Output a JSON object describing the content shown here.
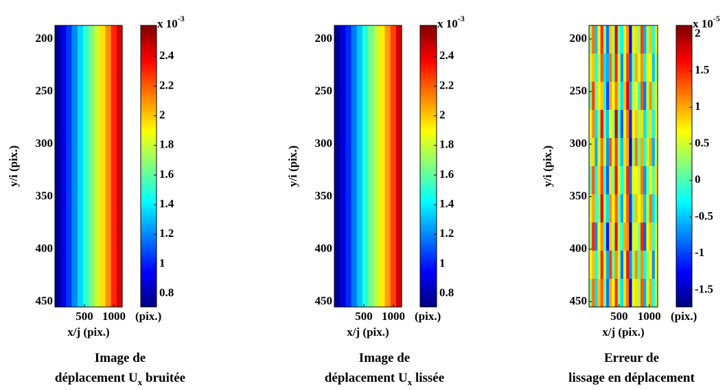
{
  "chart_data": [
    {
      "type": "heatmap",
      "colormap": "jet",
      "xlabel": "x/j (pix.)",
      "ylabel": "y/i (pix.)",
      "xlim": [
        0,
        1140
      ],
      "xticks": [
        500,
        1000
      ],
      "ylim": [
        187,
        455
      ],
      "yticks": [
        200,
        250,
        300,
        350,
        400,
        450
      ],
      "clim": [
        0.71,
        2.61
      ],
      "cticks": [
        0.8,
        1,
        1.2,
        1.4,
        1.6,
        1.8,
        2,
        2.2,
        2.4
      ],
      "cbar_multiplier": "x 10",
      "cbar_exponent": "-3",
      "cbar_unit": "(pix.)",
      "caption": {
        "line1": "Image de",
        "line2": "déplacement  U",
        "line2_sub": "x",
        "line2_end": " bruitée"
      },
      "z": [
        [
          0.75,
          0.9,
          1.05,
          1.2,
          1.35,
          1.5,
          1.65,
          1.8,
          1.95,
          2.1,
          2.3,
          2.45
        ]
      ]
    },
    {
      "type": "heatmap",
      "colormap": "jet",
      "xlabel": "x/j (pix.)",
      "ylabel": "y/i (pix.)",
      "xlim": [
        0,
        1140
      ],
      "xticks": [
        500,
        1000
      ],
      "ylim": [
        187,
        455
      ],
      "yticks": [
        200,
        250,
        300,
        350,
        400,
        450
      ],
      "clim": [
        0.71,
        2.61
      ],
      "cticks": [
        0.8,
        1,
        1.2,
        1.4,
        1.6,
        1.8,
        2,
        2.2,
        2.4
      ],
      "cbar_multiplier": "x 10",
      "cbar_exponent": "-3",
      "cbar_unit": "(pix.)",
      "caption": {
        "line1": "Image de",
        "line2": "déplacement U",
        "line2_sub": "x",
        "line2_end": " lissée"
      },
      "z": [
        [
          0.75,
          0.88,
          1.02,
          1.17,
          1.32,
          1.48,
          1.63,
          1.78,
          1.93,
          2.08,
          2.25,
          2.45
        ]
      ]
    },
    {
      "type": "heatmap",
      "colormap": "jet",
      "xlabel": "x/j (pix.)",
      "ylabel": "y/i (pix.)",
      "xlim": [
        0,
        1140
      ],
      "xticks": [
        500,
        1000
      ],
      "ylim": [
        187,
        455
      ],
      "yticks": [
        200,
        250,
        300,
        350,
        400,
        450
      ],
      "clim": [
        -1.73,
        2.12
      ],
      "cticks": [
        -1.5,
        -1,
        -0.5,
        0,
        0.5,
        1,
        1.5,
        2
      ],
      "cbar_multiplier": "x 10",
      "cbar_exponent": "-5",
      "cbar_unit": "(pix.)",
      "caption": {
        "line1": "Erreur de",
        "line2": "lissage en déplacement",
        "line2_sub": "",
        "line2_end": ""
      },
      "z": [
        [
          0.3,
          1.2,
          -0.5,
          0.6,
          1.5,
          0.2,
          -0.8,
          0.9,
          0.4,
          1.8,
          0.1,
          -0.3,
          0.7,
          1.1,
          -1.2,
          0.5,
          0.8,
          0.2,
          1.4,
          -0.6,
          0.3,
          0.9,
          -0.2,
          0.6
        ],
        [
          0.5,
          0.9,
          -0.2,
          0.4,
          1.3,
          -0.4,
          -0.6,
          1.2,
          0.2,
          1.5,
          0.4,
          -0.7,
          0.5,
          1.4,
          -0.9,
          0.2,
          1.0,
          0.5,
          1.1,
          -0.3,
          0.6,
          0.7,
          -0.5,
          0.3
        ],
        [
          0.2,
          1.4,
          0.1,
          0.7,
          0.9,
          -0.2,
          -1.0,
          1.0,
          0.6,
          1.2,
          0.3,
          -0.4,
          0.9,
          1.7,
          -0.6,
          0.4,
          0.6,
          -0.1,
          1.3,
          -0.8,
          0.4,
          1.1,
          0.1,
          0.5
        ],
        [
          0.6,
          1.1,
          -0.4,
          0.3,
          1.6,
          0.1,
          -0.5,
          0.7,
          0.3,
          1.9,
          0.0,
          -0.9,
          0.6,
          1.2,
          -1.1,
          0.7,
          0.9,
          0.3,
          0.8,
          -0.4,
          0.2,
          0.8,
          -0.3,
          0.7
        ],
        [
          0.4,
          0.8,
          -0.6,
          0.5,
          1.2,
          0.4,
          -0.7,
          1.3,
          0.5,
          1.4,
          0.2,
          -0.5,
          0.8,
          1.0,
          -1.4,
          0.3,
          1.2,
          0.1,
          1.0,
          -0.2,
          0.5,
          1.0,
          -0.6,
          0.4
        ],
        [
          0.1,
          1.3,
          -0.3,
          0.8,
          1.4,
          -0.1,
          -0.9,
          0.8,
          0.2,
          1.6,
          0.5,
          -0.2,
          0.4,
          1.5,
          -0.8,
          0.6,
          0.7,
          0.4,
          1.2,
          -0.7,
          0.1,
          0.6,
          0.0,
          0.8
        ],
        [
          0.5,
          1.0,
          -0.1,
          0.2,
          1.7,
          0.3,
          -0.4,
          1.1,
          0.7,
          1.3,
          0.1,
          -0.6,
          0.7,
          1.3,
          -1.0,
          0.1,
          0.9,
          0.6,
          0.9,
          -0.5,
          0.4,
          1.2,
          -0.4,
          0.2
        ],
        [
          0.3,
          1.5,
          -0.7,
          0.6,
          1.1,
          0.0,
          -1.2,
          0.9,
          0.4,
          1.7,
          0.3,
          -0.1,
          1.0,
          1.1,
          -1.5,
          0.5,
          0.5,
          0.2,
          1.5,
          -0.9,
          0.6,
          0.9,
          -0.1,
          0.5
        ],
        [
          0.7,
          0.9,
          -0.2,
          0.4,
          1.5,
          0.5,
          -0.6,
          1.4,
          0.1,
          1.1,
          0.4,
          -0.8,
          0.5,
          1.6,
          -0.7,
          0.3,
          1.1,
          0.0,
          1.1,
          -0.3,
          0.3,
          0.7,
          -0.7,
          0.6
        ],
        [
          0.2,
          1.2,
          -0.4,
          0.9,
          1.3,
          0.2,
          -0.8,
          1.0,
          0.6,
          1.5,
          0.2,
          -0.4,
          0.8,
          1.2,
          -1.3,
          0.6,
          0.8,
          0.3,
          1.3,
          -0.6,
          0.5,
          1.0,
          -0.2,
          0.4
        ]
      ]
    }
  ]
}
